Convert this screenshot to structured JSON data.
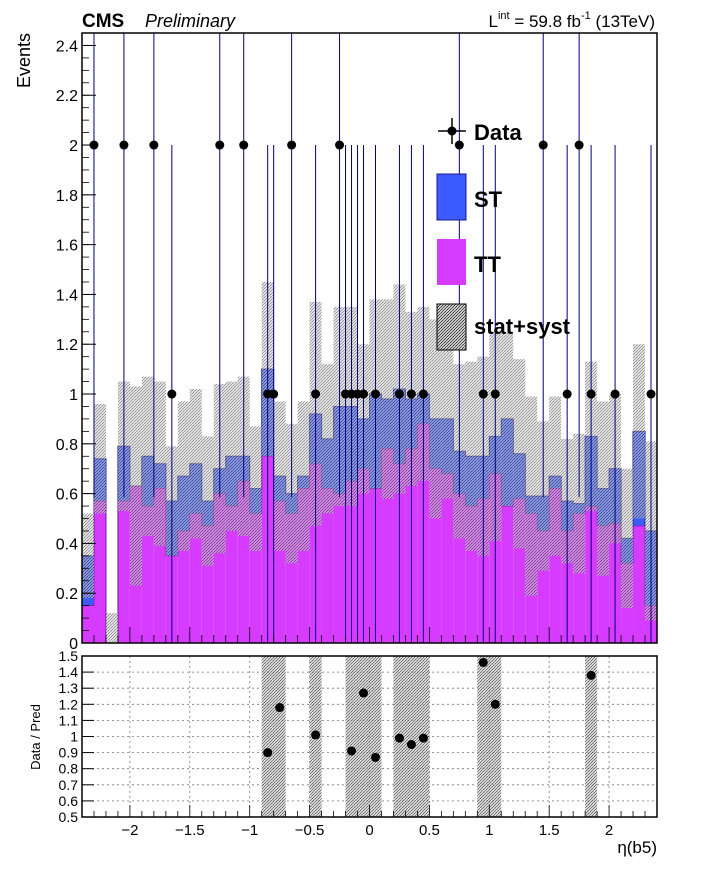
{
  "header": {
    "experiment": "CMS",
    "status": "Preliminary",
    "lumi_prefix": "L",
    "lumi_sup": "int",
    "lumi_value": " = 59.8 fb",
    "lumi_exp": "-1",
    "lumi_energy": " (13TeV)"
  },
  "colors": {
    "st": "#3d5cff",
    "tt": "#d63cff",
    "st_edge": "#1a1a8c",
    "tt_edge": "#8a1aaa",
    "band": "#9a9a9a",
    "data": "#000000",
    "data_err": "#000080"
  },
  "chart_data": [
    {
      "type": "bar",
      "stacked": true,
      "ylabel": "Events",
      "xlim": [
        -2.4,
        2.4
      ],
      "ylim": [
        0,
        2.45
      ],
      "yticks": [
        0,
        0.2,
        0.4,
        0.6,
        0.8,
        1,
        1.2,
        1.4,
        1.6,
        1.8,
        2,
        2.2,
        2.4
      ],
      "ytick_labels": [
        "0",
        "0.2",
        "0.4",
        "0.6",
        "0.8",
        "1",
        "1.2",
        "1.4",
        "1.6",
        "1.8",
        "2",
        "2.2",
        "2.4"
      ],
      "bin_width": 0.1,
      "x_centers": [
        -2.35,
        -2.25,
        -2.15,
        -2.05,
        -1.95,
        -1.85,
        -1.75,
        -1.65,
        -1.55,
        -1.45,
        -1.35,
        -1.25,
        -1.15,
        -1.05,
        -0.95,
        -0.85,
        -0.75,
        -0.65,
        -0.55,
        -0.45,
        -0.35,
        -0.25,
        -0.15,
        -0.05,
        0.05,
        0.15,
        0.25,
        0.35,
        0.45,
        0.55,
        0.65,
        0.75,
        0.85,
        0.95,
        1.05,
        1.15,
        1.25,
        1.35,
        1.45,
        1.55,
        1.65,
        1.75,
        1.85,
        1.95,
        2.05,
        2.15,
        2.25,
        2.35
      ],
      "series": [
        {
          "name": "TT",
          "values": [
            0.15,
            0.57,
            0.0,
            0.57,
            0.63,
            0.55,
            0.62,
            0.35,
            0.45,
            0.52,
            0.47,
            0.6,
            0.55,
            0.65,
            0.52,
            0.75,
            0.57,
            0.52,
            0.62,
            0.72,
            0.62,
            0.6,
            0.65,
            0.7,
            0.62,
            0.78,
            0.72,
            0.78,
            0.88,
            0.7,
            0.68,
            0.6,
            0.55,
            0.58,
            0.68,
            0.55,
            0.58,
            0.52,
            0.45,
            0.62,
            0.45,
            0.52,
            0.55,
            0.47,
            0.48,
            0.32,
            0.47,
            0.15
          ]
        },
        {
          "name": "ST",
          "values": [
            0.2,
            0.17,
            0.0,
            0.22,
            0.0,
            0.2,
            0.1,
            0.22,
            0.22,
            0.2,
            0.1,
            0.1,
            0.2,
            0.1,
            0.1,
            0.35,
            0.1,
            0.08,
            0.05,
            0.2,
            0.2,
            0.35,
            0.3,
            0.2,
            0.38,
            0.2,
            0.3,
            0.2,
            0.12,
            0.2,
            0.22,
            0.17,
            0.2,
            0.17,
            0.15,
            0.35,
            0.18,
            0.07,
            0.14,
            0.05,
            0.12,
            0.04,
            0.28,
            0.15,
            0.22,
            0.1,
            0.38,
            0.3
          ]
        }
      ],
      "band_half": [
        0.17,
        0.22,
        0.12,
        0.26,
        0.4,
        0.32,
        0.33,
        0.22,
        0.3,
        0.3,
        0.26,
        0.34,
        0.3,
        0.32,
        0.25,
        0.35,
        0.3,
        0.28,
        0.3,
        0.45,
        0.3,
        0.4,
        0.4,
        0.3,
        0.38,
        0.4,
        0.42,
        0.35,
        0.35,
        0.4,
        0.32,
        0.35,
        0.38,
        0.4,
        0.42,
        0.35,
        0.38,
        0.4,
        0.3,
        0.32,
        0.25,
        0.28,
        0.3,
        0.35,
        0.3,
        0.28,
        0.35,
        0.36
      ],
      "data": {
        "name": "Data",
        "x": [
          -2.3,
          -2.05,
          -1.8,
          -1.65,
          -1.25,
          -1.05,
          -0.85,
          -0.8,
          -0.65,
          -0.45,
          -0.25,
          -0.2,
          -0.15,
          -0.1,
          -0.05,
          0.05,
          0.25,
          0.35,
          0.45,
          0.75,
          0.95,
          1.05,
          1.45,
          1.65,
          1.75,
          1.85,
          2.05,
          2.35
        ],
        "y": [
          2,
          2,
          2,
          1,
          2,
          2,
          1,
          1,
          2,
          1,
          2,
          1,
          1,
          1,
          1,
          1,
          1,
          1,
          1,
          2,
          1,
          1,
          2,
          1,
          2,
          1,
          1,
          1
        ]
      },
      "legend": {
        "placement": "top-right",
        "entries": [
          "Data",
          "ST",
          "TT",
          "stat+syst"
        ]
      }
    },
    {
      "type": "scatter",
      "xlabel": "η(b5)",
      "ylabel": "Data / Pred",
      "xlim": [
        -2.4,
        2.4
      ],
      "ylim": [
        0.5,
        1.5
      ],
      "xticks": [
        -2,
        -1.5,
        -1,
        -0.5,
        0,
        0.5,
        1,
        1.5,
        2
      ],
      "xtick_labels": [
        "−2",
        "−1.5",
        "−1",
        "−0.5",
        "0",
        "0.5",
        "1",
        "1.5",
        "2"
      ],
      "yticks": [
        0.5,
        0.6,
        0.7,
        0.8,
        0.9,
        1,
        1.1,
        1.2,
        1.3,
        1.4,
        1.5
      ],
      "ytick_labels": [
        "0.5",
        "0.6",
        "0.7",
        "0.8",
        "0.9",
        "1",
        "1.1",
        "1.2",
        "1.3",
        "1.4",
        "1.5"
      ],
      "grid": true,
      "x": [
        -0.85,
        -0.75,
        -0.45,
        -0.15,
        -0.05,
        0.05,
        0.25,
        0.35,
        0.45,
        0.95,
        1.05,
        1.85
      ],
      "y": [
        0.9,
        1.18,
        1.01,
        0.91,
        1.27,
        0.87,
        0.99,
        0.95,
        0.99,
        1.46,
        1.2,
        1.38
      ],
      "bands": [
        [
          -0.9,
          -0.7
        ],
        [
          -0.5,
          -0.4
        ],
        [
          -0.2,
          0.1
        ],
        [
          0.2,
          0.5
        ],
        [
          0.9,
          1.1
        ],
        [
          1.8,
          1.9
        ]
      ]
    }
  ]
}
